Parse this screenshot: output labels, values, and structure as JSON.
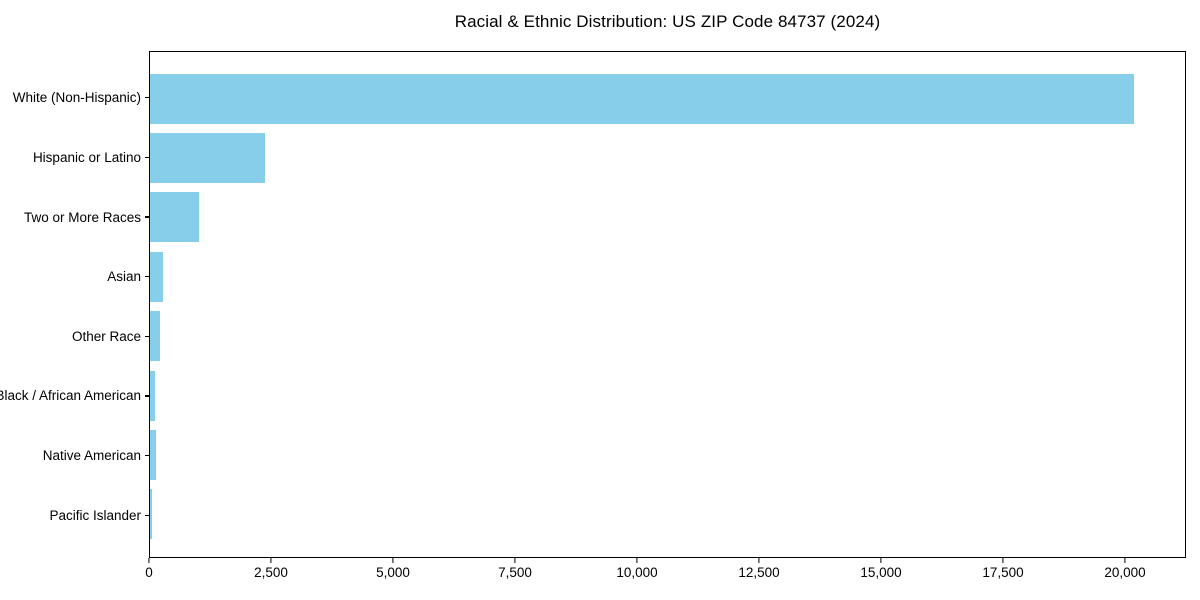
{
  "title": "Racial & Ethnic Distribution: US ZIP Code 84737 (2024)",
  "chart_data": {
    "type": "bar",
    "orientation": "horizontal",
    "title": "Racial & Ethnic Distribution: US ZIP Code 84737 (2024)",
    "xlabel": "",
    "ylabel": "",
    "categories": [
      "White (Non-Hispanic)",
      "Hispanic or Latino",
      "Two or More Races",
      "Asian",
      "Other Race",
      "Black / African American",
      "Native American",
      "Pacific Islander"
    ],
    "values": [
      20200,
      2360,
      1000,
      265,
      215,
      100,
      120,
      40
    ],
    "xlim": [
      0,
      21250
    ],
    "xticks": [
      0,
      2500,
      5000,
      7500,
      10000,
      12500,
      15000,
      17500,
      20000
    ],
    "xtick_labels": [
      "0",
      "2,500",
      "5,000",
      "7,500",
      "10,000",
      "12,500",
      "15,000",
      "17,500",
      "20,000"
    ],
    "bar_color": "#87CEEB",
    "grid": false,
    "legend": null
  }
}
